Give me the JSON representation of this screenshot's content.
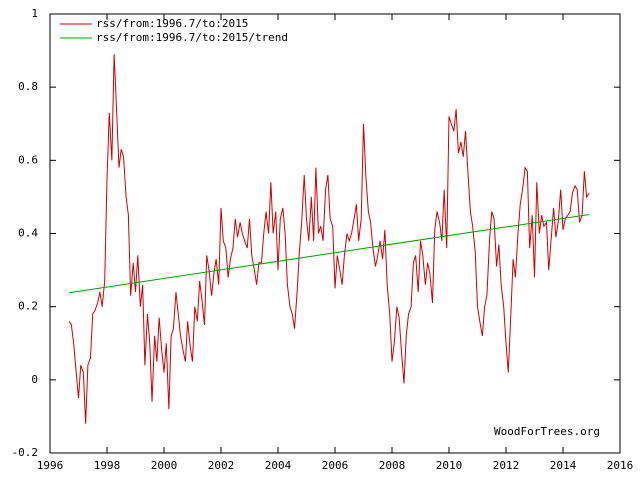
{
  "chart_data": {
    "type": "line",
    "series": [
      {
        "name": "rss/from:1996.7/to:2015",
        "color": "#d00000",
        "x": [
          1996.67,
          1996.75,
          1996.83,
          1996.92,
          1997,
          1997.08,
          1997.17,
          1997.25,
          1997.33,
          1997.42,
          1997.5,
          1997.58,
          1997.67,
          1997.75,
          1997.83,
          1997.92,
          1998,
          1998.08,
          1998.17,
          1998.25,
          1998.33,
          1998.42,
          1998.5,
          1998.58,
          1998.67,
          1998.75,
          1998.83,
          1998.92,
          1999,
          1999.08,
          1999.17,
          1999.25,
          1999.33,
          1999.42,
          1999.5,
          1999.58,
          1999.67,
          1999.75,
          1999.83,
          1999.92,
          2000,
          2000.08,
          2000.17,
          2000.25,
          2000.33,
          2000.42,
          2000.5,
          2000.58,
          2000.67,
          2000.75,
          2000.83,
          2000.92,
          2001,
          2001.08,
          2001.17,
          2001.25,
          2001.33,
          2001.42,
          2001.5,
          2001.58,
          2001.67,
          2001.75,
          2001.83,
          2001.92,
          2002,
          2002.08,
          2002.17,
          2002.25,
          2002.33,
          2002.42,
          2002.5,
          2002.58,
          2002.67,
          2002.75,
          2002.83,
          2002.92,
          2003,
          2003.08,
          2003.17,
          2003.25,
          2003.33,
          2003.42,
          2003.5,
          2003.58,
          2003.67,
          2003.75,
          2003.83,
          2003.92,
          2004,
          2004.08,
          2004.17,
          2004.25,
          2004.33,
          2004.42,
          2004.5,
          2004.58,
          2004.67,
          2004.75,
          2004.83,
          2004.92,
          2005,
          2005.08,
          2005.17,
          2005.25,
          2005.33,
          2005.42,
          2005.5,
          2005.58,
          2005.67,
          2005.75,
          2005.83,
          2005.92,
          2006,
          2006.08,
          2006.17,
          2006.25,
          2006.33,
          2006.42,
          2006.5,
          2006.58,
          2006.67,
          2006.75,
          2006.83,
          2006.92,
          2007,
          2007.08,
          2007.17,
          2007.25,
          2007.33,
          2007.42,
          2007.5,
          2007.58,
          2007.67,
          2007.75,
          2007.83,
          2007.92,
          2008,
          2008.08,
          2008.17,
          2008.25,
          2008.33,
          2008.42,
          2008.5,
          2008.58,
          2008.67,
          2008.75,
          2008.83,
          2008.92,
          2009,
          2009.08,
          2009.17,
          2009.25,
          2009.33,
          2009.42,
          2009.5,
          2009.58,
          2009.67,
          2009.75,
          2009.83,
          2009.92,
          2010,
          2010.08,
          2010.17,
          2010.25,
          2010.33,
          2010.42,
          2010.5,
          2010.58,
          2010.67,
          2010.75,
          2010.83,
          2010.92,
          2011,
          2011.08,
          2011.17,
          2011.25,
          2011.33,
          2011.42,
          2011.5,
          2011.58,
          2011.67,
          2011.75,
          2011.83,
          2011.92,
          2012,
          2012.08,
          2012.17,
          2012.25,
          2012.33,
          2012.42,
          2012.5,
          2012.58,
          2012.67,
          2012.75,
          2012.83,
          2012.92,
          2013,
          2013.08,
          2013.17,
          2013.25,
          2013.33,
          2013.42,
          2013.5,
          2013.58,
          2013.67,
          2013.75,
          2013.83,
          2013.92,
          2014,
          2014.08,
          2014.17,
          2014.25,
          2014.33,
          2014.42,
          2014.5,
          2014.58,
          2014.67,
          2014.75,
          2014.83,
          2014.92
        ],
        "values": [
          0.16,
          0.15,
          0.1,
          0.02,
          -0.05,
          0.04,
          0.02,
          -0.12,
          0.04,
          0.06,
          0.18,
          0.19,
          0.21,
          0.24,
          0.2,
          0.27,
          0.55,
          0.73,
          0.6,
          0.89,
          0.75,
          0.58,
          0.63,
          0.61,
          0.5,
          0.45,
          0.23,
          0.32,
          0.24,
          0.34,
          0.2,
          0.26,
          0.04,
          0.18,
          0.1,
          -0.06,
          0.12,
          0.05,
          0.17,
          0.08,
          0.02,
          0.1,
          -0.08,
          0.12,
          0.14,
          0.24,
          0.18,
          0.12,
          0.08,
          0.05,
          0.16,
          0.09,
          0.05,
          0.2,
          0.16,
          0.27,
          0.22,
          0.15,
          0.34,
          0.3,
          0.23,
          0.29,
          0.33,
          0.26,
          0.47,
          0.38,
          0.36,
          0.28,
          0.33,
          0.36,
          0.44,
          0.39,
          0.43,
          0.4,
          0.38,
          0.36,
          0.44,
          0.34,
          0.3,
          0.26,
          0.32,
          0.32,
          0.4,
          0.46,
          0.4,
          0.54,
          0.4,
          0.46,
          0.3,
          0.44,
          0.47,
          0.4,
          0.26,
          0.2,
          0.18,
          0.14,
          0.24,
          0.35,
          0.43,
          0.56,
          0.44,
          0.38,
          0.5,
          0.38,
          0.58,
          0.4,
          0.42,
          0.38,
          0.52,
          0.56,
          0.44,
          0.42,
          0.25,
          0.34,
          0.3,
          0.26,
          0.34,
          0.4,
          0.38,
          0.4,
          0.44,
          0.48,
          0.38,
          0.44,
          0.7,
          0.56,
          0.46,
          0.43,
          0.36,
          0.31,
          0.34,
          0.38,
          0.33,
          0.41,
          0.26,
          0.18,
          0.05,
          0.1,
          0.2,
          0.17,
          0.08,
          -0.01,
          0.12,
          0.18,
          0.2,
          0.32,
          0.34,
          0.24,
          0.38,
          0.34,
          0.26,
          0.32,
          0.29,
          0.21,
          0.41,
          0.46,
          0.43,
          0.38,
          0.52,
          0.36,
          0.72,
          0.7,
          0.68,
          0.74,
          0.62,
          0.65,
          0.61,
          0.68,
          0.56,
          0.46,
          0.42,
          0.35,
          0.2,
          0.16,
          0.12,
          0.2,
          0.23,
          0.38,
          0.46,
          0.44,
          0.31,
          0.37,
          0.26,
          0.2,
          0.1,
          0.02,
          0.18,
          0.33,
          0.28,
          0.4,
          0.48,
          0.52,
          0.58,
          0.57,
          0.36,
          0.45,
          0.28,
          0.54,
          0.4,
          0.45,
          0.42,
          0.43,
          0.3,
          0.38,
          0.47,
          0.39,
          0.43,
          0.52,
          0.41,
          0.44,
          0.45,
          0.46,
          0.51,
          0.53,
          0.52,
          0.43,
          0.45,
          0.57,
          0.5,
          0.51
        ]
      },
      {
        "name": "rss/from:1996.7/to:2015/trend",
        "color": "#00a000",
        "x": [
          1996.67,
          2014.92
        ],
        "values": [
          0.238,
          0.452
        ]
      }
    ],
    "xlim": [
      1996,
      2016
    ],
    "xticks": [
      1996,
      1998,
      2000,
      2002,
      2004,
      2006,
      2008,
      2010,
      2012,
      2014,
      2016
    ],
    "ylim": [
      -0.2,
      1
    ],
    "yticks": [
      -0.2,
      0,
      0.2,
      0.4,
      0.6,
      0.8,
      1
    ],
    "annotation": "WoodForTrees.org",
    "legend": "upper left",
    "grid": false
  }
}
